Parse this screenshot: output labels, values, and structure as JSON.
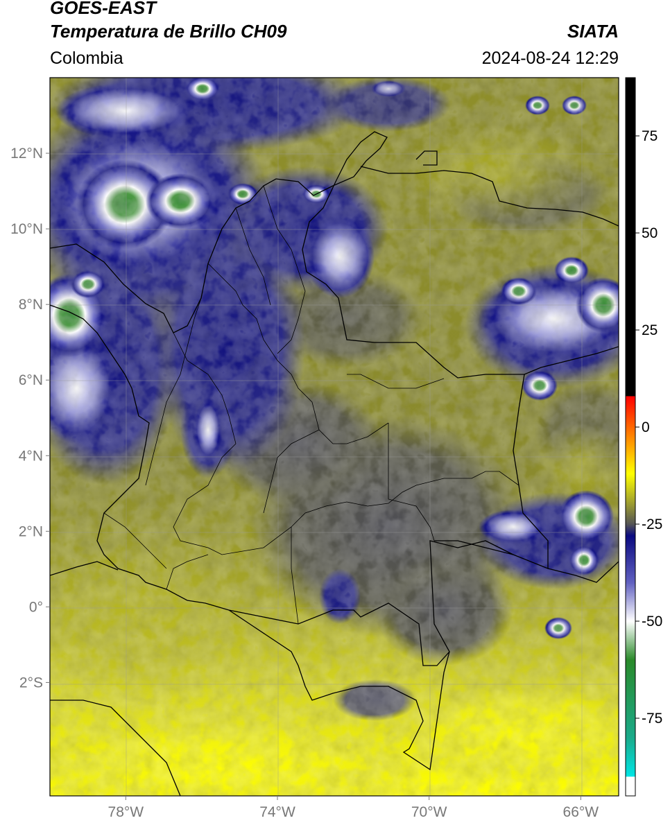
{
  "header": {
    "title_line1": "GOES-EAST",
    "title_line2": "Temperatura de Brillo CH09",
    "source": "SIATA",
    "region": "Colombia",
    "datetime": "2024-08-24 12:29"
  },
  "map": {
    "lon_range": [
      -80,
      -65
    ],
    "lat_range": [
      -5,
      14
    ],
    "lat_ticks": [
      {
        "value": 12,
        "label": "12°N"
      },
      {
        "value": 10,
        "label": "10°N"
      },
      {
        "value": 8,
        "label": "8°N"
      },
      {
        "value": 6,
        "label": "6°N"
      },
      {
        "value": 4,
        "label": "4°N"
      },
      {
        "value": 2,
        "label": "2°N"
      },
      {
        "value": 0,
        "label": "0°"
      },
      {
        "value": -2,
        "label": "2°S"
      }
    ],
    "lon_ticks": [
      {
        "value": -78,
        "label": "78°W"
      },
      {
        "value": -74,
        "label": "74°W"
      },
      {
        "value": -70,
        "label": "70°W"
      },
      {
        "value": -66,
        "label": "66°W"
      }
    ],
    "colors": {
      "warm": "#ffff00",
      "mid": "#9a9a2c",
      "gray": "#555555",
      "blue": "#1a1a8a",
      "white": "#ffffff",
      "green": "#3a8a3a",
      "border": "#000000"
    }
  },
  "colorbar": {
    "range": [
      -95,
      90
    ],
    "ticks": [
      {
        "value": 75,
        "label": "75"
      },
      {
        "value": 50,
        "label": "50"
      },
      {
        "value": 25,
        "label": "25"
      },
      {
        "value": 0,
        "label": "0"
      },
      {
        "value": -25,
        "label": "-25"
      },
      {
        "value": -50,
        "label": "-50"
      },
      {
        "value": -75,
        "label": "-75"
      }
    ],
    "stops": [
      {
        "value": 90,
        "color": "#000000"
      },
      {
        "value": 8,
        "color": "#000000"
      },
      {
        "value": 7.9,
        "color": "#ff0000"
      },
      {
        "value": -2,
        "color": "#ff8000"
      },
      {
        "value": -12,
        "color": "#ffff00"
      },
      {
        "value": -20,
        "color": "#999933"
      },
      {
        "value": -25,
        "color": "#555555"
      },
      {
        "value": -28,
        "color": "#0a0a80"
      },
      {
        "value": -40,
        "color": "#6060c0"
      },
      {
        "value": -50,
        "color": "#ffffff"
      },
      {
        "value": -60,
        "color": "#2a8a2a"
      },
      {
        "value": -80,
        "color": "#1aaa8a"
      },
      {
        "value": -90,
        "color": "#00e5e5"
      },
      {
        "value": -90.1,
        "color": "#ffffff"
      },
      {
        "value": -95,
        "color": "#ffffff"
      }
    ]
  }
}
